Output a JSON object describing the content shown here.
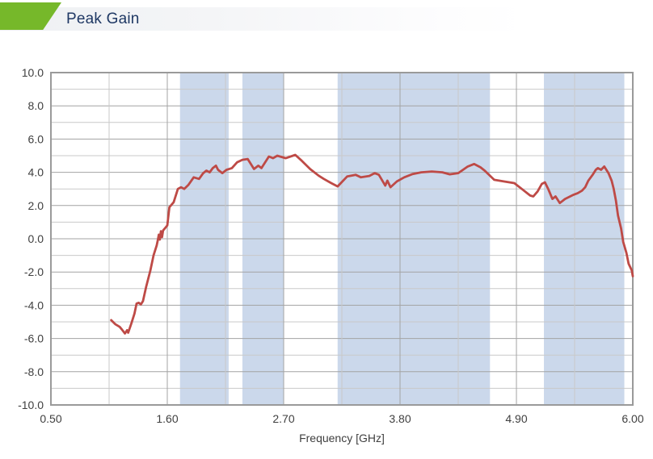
{
  "header": {
    "title": "Peak Gain",
    "accent_color": "#76b82a",
    "title_color": "#1f3864"
  },
  "chart_data": {
    "type": "line",
    "title": "Peak Gain",
    "xlabel": "Frequency [GHz]",
    "ylabel": "",
    "xlim": [
      0.5,
      6.0
    ],
    "ylim": [
      -10,
      10
    ],
    "grid": true,
    "legend_position": "none",
    "x_major_ticks": [
      0.5,
      1.6,
      2.7,
      3.8,
      4.9,
      6.0
    ],
    "x_tick_labels": [
      "0.50",
      "1.60",
      "2.70",
      "3.80",
      "4.90",
      "6.00"
    ],
    "x_minor_offset": 0.55,
    "y_major_step": 2,
    "y_minor_step": 1,
    "y_tick_labels": [
      "10.0",
      "8.0",
      "6.0",
      "4.0",
      "2.0",
      "0.0",
      "-2.0",
      "-4.0",
      "-6.0",
      "-8.0",
      "-10.0"
    ],
    "colors": {
      "band": "#cbd8eb",
      "grid_major": "#a3a3a3",
      "grid_minor": "#c9c9c9",
      "axis": "#9a9a9a",
      "text": "#3f3f3f",
      "line": "#be4a46"
    },
    "highlight_bands": [
      {
        "from": 1.72,
        "to": 2.18
      },
      {
        "from": 2.31,
        "to": 2.7
      },
      {
        "from": 3.21,
        "to": 4.65
      },
      {
        "from": 5.16,
        "to": 5.92
      }
    ],
    "series": [
      {
        "name": "Peak Gain",
        "color": "#be4a46",
        "points": [
          [
            1.07,
            -4.9
          ],
          [
            1.11,
            -5.15
          ],
          [
            1.15,
            -5.3
          ],
          [
            1.17,
            -5.45
          ],
          [
            1.2,
            -5.7
          ],
          [
            1.22,
            -5.5
          ],
          [
            1.23,
            -5.65
          ],
          [
            1.26,
            -5.1
          ],
          [
            1.29,
            -4.5
          ],
          [
            1.31,
            -3.9
          ],
          [
            1.33,
            -3.85
          ],
          [
            1.35,
            -3.95
          ],
          [
            1.37,
            -3.75
          ],
          [
            1.4,
            -2.9
          ],
          [
            1.44,
            -1.9
          ],
          [
            1.47,
            -1.0
          ],
          [
            1.5,
            -0.4
          ],
          [
            1.51,
            -0.1
          ],
          [
            1.52,
            0.25
          ],
          [
            1.53,
            -0.05
          ],
          [
            1.54,
            0.45
          ],
          [
            1.55,
            0.1
          ],
          [
            1.56,
            0.5
          ],
          [
            1.58,
            0.65
          ],
          [
            1.6,
            0.8
          ],
          [
            1.62,
            1.9
          ],
          [
            1.66,
            2.2
          ],
          [
            1.7,
            3.0
          ],
          [
            1.73,
            3.1
          ],
          [
            1.76,
            3.0
          ],
          [
            1.8,
            3.25
          ],
          [
            1.85,
            3.7
          ],
          [
            1.9,
            3.6
          ],
          [
            1.94,
            3.95
          ],
          [
            1.97,
            4.1
          ],
          [
            2.0,
            4.0
          ],
          [
            2.03,
            4.25
          ],
          [
            2.06,
            4.4
          ],
          [
            2.08,
            4.15
          ],
          [
            2.12,
            3.95
          ],
          [
            2.16,
            4.15
          ],
          [
            2.21,
            4.25
          ],
          [
            2.26,
            4.6
          ],
          [
            2.31,
            4.75
          ],
          [
            2.36,
            4.8
          ],
          [
            2.42,
            4.2
          ],
          [
            2.46,
            4.4
          ],
          [
            2.49,
            4.25
          ],
          [
            2.56,
            4.95
          ],
          [
            2.6,
            4.85
          ],
          [
            2.64,
            5.0
          ],
          [
            2.72,
            4.85
          ],
          [
            2.81,
            5.05
          ],
          [
            2.87,
            4.7
          ],
          [
            2.95,
            4.2
          ],
          [
            3.03,
            3.8
          ],
          [
            3.08,
            3.6
          ],
          [
            3.15,
            3.35
          ],
          [
            3.21,
            3.15
          ],
          [
            3.3,
            3.75
          ],
          [
            3.38,
            3.85
          ],
          [
            3.43,
            3.7
          ],
          [
            3.51,
            3.78
          ],
          [
            3.56,
            3.95
          ],
          [
            3.6,
            3.85
          ],
          [
            3.66,
            3.2
          ],
          [
            3.68,
            3.5
          ],
          [
            3.71,
            3.1
          ],
          [
            3.77,
            3.45
          ],
          [
            3.84,
            3.7
          ],
          [
            3.92,
            3.9
          ],
          [
            4.0,
            4.0
          ],
          [
            4.1,
            4.05
          ],
          [
            4.2,
            4.0
          ],
          [
            4.27,
            3.88
          ],
          [
            4.35,
            3.95
          ],
          [
            4.44,
            4.35
          ],
          [
            4.5,
            4.5
          ],
          [
            4.56,
            4.3
          ],
          [
            4.6,
            4.1
          ],
          [
            4.69,
            3.55
          ],
          [
            4.78,
            3.45
          ],
          [
            4.88,
            3.35
          ],
          [
            4.96,
            2.95
          ],
          [
            5.03,
            2.6
          ],
          [
            5.06,
            2.55
          ],
          [
            5.1,
            2.85
          ],
          [
            5.14,
            3.3
          ],
          [
            5.17,
            3.4
          ],
          [
            5.2,
            3.0
          ],
          [
            5.24,
            2.4
          ],
          [
            5.27,
            2.55
          ],
          [
            5.31,
            2.15
          ],
          [
            5.36,
            2.4
          ],
          [
            5.44,
            2.65
          ],
          [
            5.48,
            2.75
          ],
          [
            5.52,
            2.9
          ],
          [
            5.55,
            3.1
          ],
          [
            5.58,
            3.5
          ],
          [
            5.62,
            3.85
          ],
          [
            5.65,
            4.15
          ],
          [
            5.67,
            4.25
          ],
          [
            5.7,
            4.15
          ],
          [
            5.73,
            4.35
          ],
          [
            5.77,
            3.95
          ],
          [
            5.8,
            3.5
          ],
          [
            5.82,
            3.0
          ],
          [
            5.84,
            2.3
          ],
          [
            5.86,
            1.4
          ],
          [
            5.89,
            0.6
          ],
          [
            5.91,
            -0.2
          ],
          [
            5.94,
            -0.85
          ],
          [
            5.96,
            -1.5
          ],
          [
            5.99,
            -1.9
          ],
          [
            6.0,
            -2.25
          ]
        ]
      }
    ]
  }
}
